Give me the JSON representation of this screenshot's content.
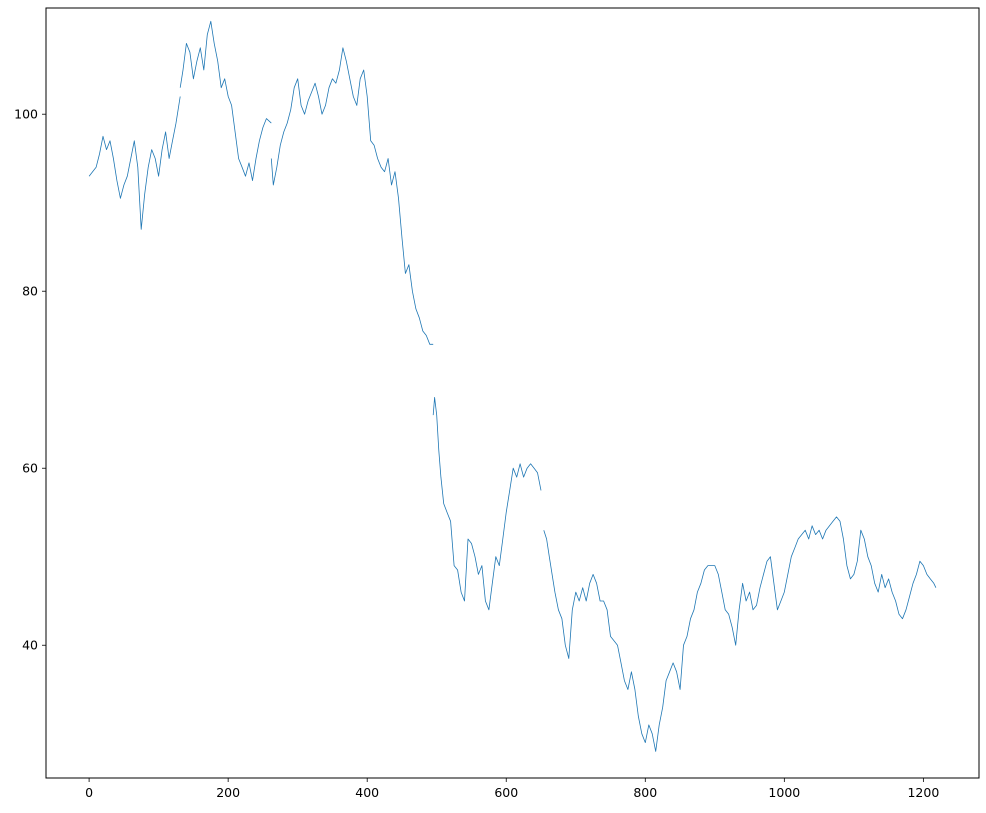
{
  "chart_data": {
    "type": "line",
    "title": "",
    "xlabel": "",
    "ylabel": "",
    "xlim": [
      -62,
      1280
    ],
    "ylim": [
      25,
      112
    ],
    "xticks": [
      0,
      200,
      400,
      600,
      800,
      1000,
      1200
    ],
    "yticks": [
      40,
      60,
      80,
      100
    ],
    "xtick_labels": [
      "0",
      "200",
      "400",
      "600",
      "800",
      "1000",
      "1200"
    ],
    "ytick_labels": [
      "40",
      "60",
      "80",
      "100"
    ],
    "grid": false,
    "legend": "none",
    "line_color": "#1f77b4",
    "series": [
      {
        "segments": [
          {
            "x": [
              0,
              5,
              10,
              15,
              20,
              25,
              30,
              35,
              40,
              45,
              50,
              55,
              60,
              65,
              70,
              75,
              80,
              85,
              90,
              95,
              100,
              105,
              110,
              115,
              120,
              125,
              131
            ],
            "y": [
              93,
              93.5,
              94,
              95.5,
              97.5,
              96,
              97,
              95,
              92.5,
              90.5,
              92,
              93,
              95,
              97,
              94,
              87,
              91,
              94,
              96,
              95,
              93,
              96,
              98,
              95,
              97,
              99,
              102
            ]
          },
          {
            "x": [
              131,
              135,
              140,
              145,
              150,
              155,
              160,
              165,
              170,
              175,
              180,
              185,
              190,
              195,
              200,
              205,
              210,
              215,
              220,
              225,
              230,
              235,
              240,
              245,
              250,
              255,
              262
            ],
            "y": [
              103,
              105,
              108,
              107,
              104,
              106,
              107.5,
              105,
              109,
              110.5,
              108,
              106,
              103,
              104,
              102,
              101,
              98,
              95,
              94,
              93,
              94.5,
              92.5,
              95,
              97,
              98.5,
              99.5,
              99
            ]
          },
          {
            "x": [
              262,
              265,
              270,
              275,
              280,
              285,
              290,
              295,
              300,
              305,
              310,
              315,
              320,
              325,
              330,
              335,
              340,
              345,
              350,
              355,
              360,
              365,
              370,
              375,
              380,
              385,
              390,
              395,
              400,
              405,
              410,
              415,
              420,
              425,
              430,
              435,
              440,
              445,
              450,
              455,
              460,
              465,
              470,
              475,
              480,
              485,
              490,
              495
            ],
            "y": [
              95,
              92,
              94,
              96.5,
              98,
              99,
              100.5,
              103,
              104,
              101,
              100,
              101.5,
              102.5,
              103.5,
              102,
              100,
              101,
              103,
              104,
              103.5,
              105,
              107.5,
              106,
              104,
              102,
              101,
              104,
              105,
              102,
              97,
              96.5,
              95,
              94,
              93.5,
              95,
              92,
              93.5,
              90.5,
              86,
              82,
              83,
              80,
              78,
              77,
              75.5,
              75,
              74,
              74
            ]
          },
          {
            "x": [
              495,
              497,
              500,
              503,
              506,
              510,
              515,
              520,
              525,
              530,
              535,
              540,
              545,
              550,
              555,
              560,
              565,
              570,
              575,
              580,
              585,
              590,
              595,
              600,
              605,
              610,
              615,
              620,
              625,
              630,
              635,
              640,
              645,
              650
            ],
            "y": [
              66,
              68,
              66,
              62,
              59,
              56,
              55,
              54,
              49,
              48.5,
              46,
              45,
              52,
              51.5,
              50,
              48,
              49,
              45,
              44,
              47,
              50,
              49,
              52,
              55,
              57.5,
              60,
              59,
              60.5,
              59,
              60,
              60.5,
              60,
              59.5,
              57.5
            ]
          },
          {
            "x": [
              654,
              658,
              662,
              666,
              670,
              675,
              680,
              685,
              690,
              695,
              700,
              705,
              710,
              715,
              720,
              725,
              730,
              735,
              740,
              745,
              750,
              755,
              760,
              765,
              770,
              775,
              780,
              785,
              790,
              795,
              800,
              805,
              810,
              815,
              820,
              825,
              830,
              835,
              840,
              845,
              850,
              855,
              860,
              865,
              870,
              875,
              880,
              885,
              890,
              895,
              900,
              905,
              910,
              915,
              920,
              925,
              930,
              935,
              940,
              945,
              950,
              955,
              960,
              965,
              970,
              975,
              980,
              985,
              990,
              995,
              1000,
              1005,
              1010,
              1015,
              1020,
              1025,
              1030,
              1035,
              1040,
              1045,
              1050,
              1055,
              1060,
              1065,
              1070,
              1075,
              1080,
              1085,
              1090,
              1095,
              1100,
              1105,
              1110,
              1115,
              1120,
              1125,
              1130,
              1135,
              1140,
              1145,
              1150,
              1155,
              1160,
              1165,
              1170,
              1175,
              1180,
              1185,
              1190,
              1195,
              1200,
              1205,
              1210,
              1215,
              1218
            ],
            "y": [
              53,
              52,
              50,
              48,
              46,
              44,
              43,
              40,
              38.5,
              44,
              46,
              45,
              46.5,
              45,
              47,
              48,
              47,
              45,
              45,
              44,
              41,
              40.5,
              40,
              38,
              36,
              35,
              37,
              35,
              32,
              30,
              29,
              31,
              30,
              28,
              31,
              33,
              36,
              37,
              38,
              37,
              35,
              40,
              41,
              43,
              44,
              46,
              47,
              48.5,
              49,
              49,
              49,
              48,
              46,
              44,
              43.5,
              42,
              40,
              44,
              47,
              45,
              46,
              44,
              44.5,
              46.5,
              48,
              49.5,
              50,
              47,
              44,
              45,
              46,
              48,
              50,
              51,
              52,
              52.5,
              53,
              52,
              53.5,
              52.5,
              53,
              52,
              53,
              53.5,
              54,
              54.5,
              54,
              52,
              49,
              47.5,
              48,
              49.5,
              53,
              52,
              50,
              49,
              47,
              46,
              48,
              46.5,
              47.5,
              46,
              45,
              43.5,
              43,
              44,
              45.5,
              47,
              48,
              49.5,
              49,
              48,
              47.5,
              47,
              46.5
            ]
          }
        ]
      }
    ]
  }
}
